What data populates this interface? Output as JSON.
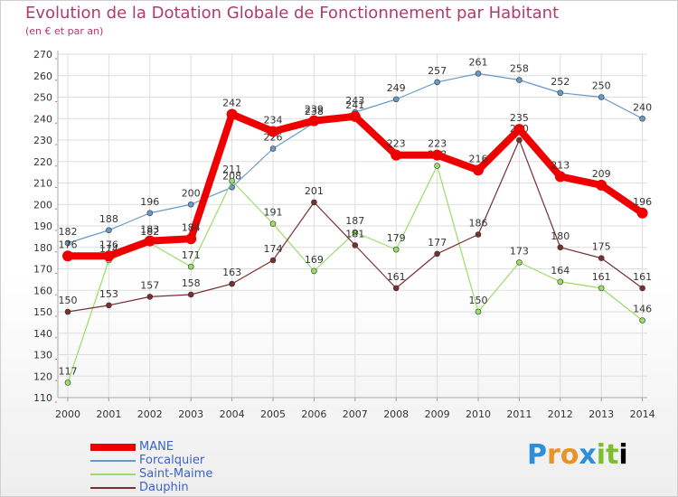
{
  "chart_data": {
    "type": "line",
    "title": "Evolution de la Dotation Globale de Fonctionnement par Habitant",
    "subtitle": "(en € et par an)",
    "xlabel": "",
    "ylabel": "",
    "x": [
      "2000",
      "2001",
      "2002",
      "2003",
      "2004",
      "2005",
      "2006",
      "2007",
      "2008",
      "2009",
      "2010",
      "2011",
      "2012",
      "2013",
      "2014"
    ],
    "ylim": [
      110,
      270
    ],
    "yticks": [
      110,
      120,
      130,
      140,
      150,
      160,
      170,
      180,
      190,
      200,
      210,
      220,
      230,
      240,
      250,
      260,
      270
    ],
    "grid": true,
    "legend_position": "bottom-left",
    "series": [
      {
        "name": "MANE",
        "color": "#ee0000",
        "values": [
          176,
          176,
          183,
          184,
          242,
          234,
          239,
          241,
          223,
          223,
          216,
          235,
          213,
          209,
          196
        ]
      },
      {
        "name": "Forcalquier",
        "color": "#6699cc",
        "values": [
          182,
          188,
          196,
          200,
          208,
          226,
          238,
          243,
          249,
          257,
          261,
          258,
          252,
          250,
          240
        ]
      },
      {
        "name": "Saint-Maime",
        "color": "#99dd66",
        "values": [
          117,
          174,
          182,
          171,
          211,
          191,
          169,
          187,
          179,
          218,
          150,
          173,
          164,
          161,
          146
        ]
      },
      {
        "name": "Dauphin",
        "color": "#7a2f2f",
        "values": [
          150,
          153,
          157,
          158,
          163,
          174,
          201,
          181,
          161,
          177,
          186,
          230,
          180,
          175,
          161
        ]
      }
    ]
  },
  "logo": {
    "letters": [
      "P",
      "r",
      "o",
      "x",
      "i",
      "t",
      "i"
    ]
  }
}
